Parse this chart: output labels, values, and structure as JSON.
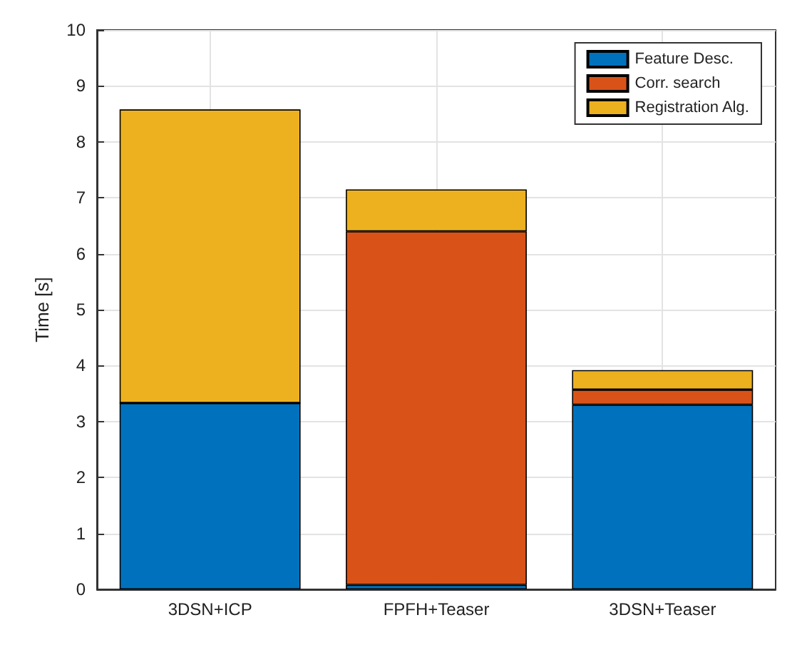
{
  "chart_data": {
    "type": "bar",
    "stacked": true,
    "ylabel": "Time [s]",
    "categories": [
      "3DSN+ICP",
      "FPFH+Teaser",
      "3DSN+Teaser"
    ],
    "series": [
      {
        "name": "Feature Desc.",
        "color": "#0072bd",
        "values": [
          3.33,
          0.08,
          3.3
        ]
      },
      {
        "name": "Corr. search",
        "color": "#d95319",
        "values": [
          0,
          6.32,
          0.27
        ]
      },
      {
        "name": "Registration Alg.",
        "color": "#edb120",
        "values": [
          5.25,
          0.75,
          0.35
        ]
      }
    ],
    "ylim": [
      0,
      10
    ],
    "yticks": [
      0,
      1,
      2,
      3,
      4,
      5,
      6,
      7,
      8,
      9,
      10
    ],
    "grid": true,
    "legend": "top right"
  }
}
